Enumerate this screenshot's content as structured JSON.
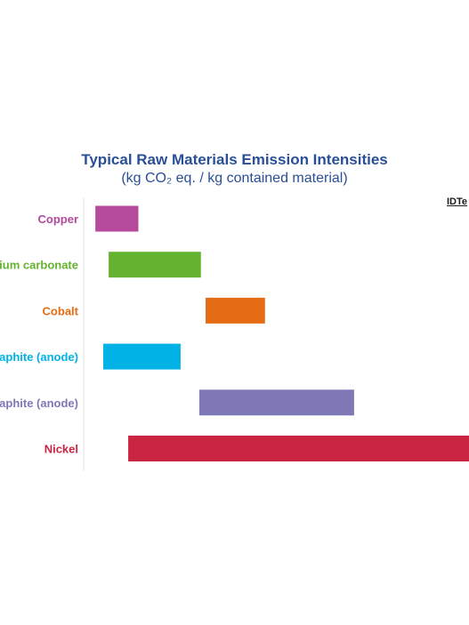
{
  "chart_data": {
    "type": "bar",
    "orientation": "horizontal-range",
    "title": "Typical Raw Materials Emission Intensities",
    "subtitle": "(kg CO₂ eq.  / kg contained material)",
    "source": "IDTe",
    "categories": [
      "Copper",
      "ium carbonate",
      "Cobalt",
      "aphite (anode)",
      "aphite (anode)",
      "Nickel"
    ],
    "ranges": [
      [
        1.5,
        7.0
      ],
      [
        3.2,
        15.0
      ],
      [
        15.6,
        23.2
      ],
      [
        2.5,
        12.4
      ],
      [
        14.8,
        34.6
      ],
      [
        5.7,
        49.3
      ]
    ],
    "colors": [
      "#b5499b",
      "#63b32e",
      "#e56c14",
      "#00b2e5",
      "#7e78b7",
      "#ca2443"
    ],
    "xlim": [
      0,
      49.3
    ],
    "grid": false,
    "legend": "none"
  }
}
